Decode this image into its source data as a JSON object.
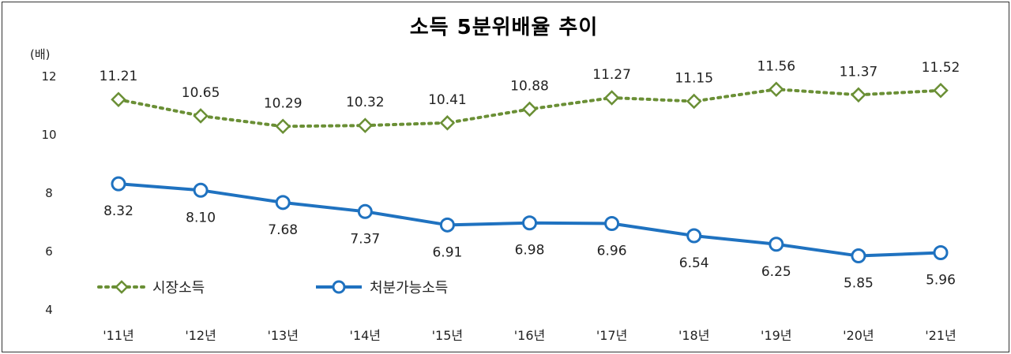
{
  "chart_data": {
    "type": "line",
    "title": "소득 5분위배율 추이",
    "ylabel": "(배)",
    "xlabel": "",
    "ylim": [
      4,
      12
    ],
    "yticks": [
      4,
      6,
      8,
      10,
      12
    ],
    "categories": [
      "'11년",
      "'12년",
      "'13년",
      "'14년",
      "'15년",
      "'16년",
      "'17년",
      "'18년",
      "'19년",
      "'20년",
      "'21년"
    ],
    "series": [
      {
        "name": "시장소득",
        "color": "#6a8f35",
        "style": "dotted",
        "marker": "diamond",
        "values": [
          11.21,
          10.65,
          10.29,
          10.32,
          10.41,
          10.88,
          11.27,
          11.15,
          11.56,
          11.37,
          11.52
        ],
        "labels": [
          "11.21",
          "10.65",
          "10.29",
          "10.32",
          "10.41",
          "10.88",
          "11.27",
          "11.15",
          "11.56",
          "11.37",
          "11.52"
        ]
      },
      {
        "name": "처분가능소득",
        "color": "#1f72c0",
        "style": "solid",
        "marker": "circle",
        "values": [
          8.32,
          8.1,
          7.68,
          7.37,
          6.91,
          6.98,
          6.96,
          6.54,
          6.25,
          5.85,
          5.96
        ],
        "labels": [
          "8.32",
          "8.10",
          "7.68",
          "7.37",
          "6.91",
          "6.98",
          "6.96",
          "6.54",
          "6.25",
          "5.85",
          "5.96"
        ]
      }
    ],
    "grid": false,
    "legend_position": "bottom-left"
  }
}
